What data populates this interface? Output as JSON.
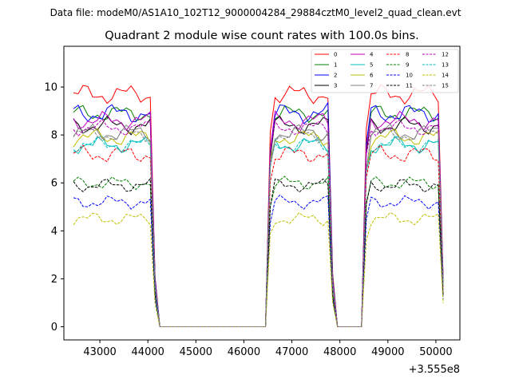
{
  "chart_data": {
    "type": "line",
    "suptitle": "Data file: modeM0/AS1A10_102T12_9000004284_29884cztM0_level2_quad_clean.evt",
    "title": "Quadrant 2 module wise count rates with 100.0s bins.",
    "xlabel": "",
    "ylabel": "",
    "x_offset_label": "+3.555e8",
    "xlim": [
      42250,
      50500
    ],
    "ylim": [
      -0.55,
      11.7
    ],
    "x_ticks": [
      43000,
      44000,
      45000,
      46000,
      47000,
      48000,
      49000,
      50000
    ],
    "x_tick_labels": [
      "43000",
      "44000",
      "45000",
      "46000",
      "47000",
      "48000",
      "49000",
      "50000"
    ],
    "y_ticks": [
      0,
      2,
      4,
      6,
      8,
      10
    ],
    "y_tick_labels": [
      "0",
      "2",
      "4",
      "6",
      "8",
      "10"
    ],
    "legend_position": "top-right",
    "segments": [
      {
        "start": 42450,
        "end": 44150
      },
      {
        "start": 46550,
        "end": 47850
      },
      {
        "start": 48550,
        "end": 50150
      }
    ],
    "series": [
      {
        "name": "0",
        "level": 9.7,
        "amp": 0.45,
        "color": "#ff0000",
        "dash": "solid",
        "phase": 0.3
      },
      {
        "name": "1",
        "level": 8.9,
        "amp": 0.4,
        "color": "#008000",
        "dash": "solid",
        "phase": 1.1
      },
      {
        "name": "2",
        "level": 8.9,
        "amp": 0.45,
        "color": "#0000ff",
        "dash": "solid",
        "phase": 2.0
      },
      {
        "name": "3",
        "level": 8.4,
        "amp": 0.4,
        "color": "#000000",
        "dash": "solid",
        "phase": 2.7
      },
      {
        "name": "4",
        "level": 8.6,
        "amp": 0.4,
        "color": "#bf00bf",
        "dash": "solid",
        "phase": 3.5
      },
      {
        "name": "5",
        "level": 7.6,
        "amp": 0.4,
        "color": "#00bfbf",
        "dash": "solid",
        "phase": 4.2
      },
      {
        "name": "6",
        "level": 7.9,
        "amp": 0.4,
        "color": "#bfbf00",
        "dash": "solid",
        "phase": 5.0
      },
      {
        "name": "7",
        "level": 8.1,
        "amp": 0.4,
        "color": "#808080",
        "dash": "solid",
        "phase": 5.8
      },
      {
        "name": "8",
        "level": 7.2,
        "amp": 0.4,
        "color": "#ff0000",
        "dash": "dashed",
        "phase": 0.8
      },
      {
        "name": "9",
        "level": 6.0,
        "amp": 0.3,
        "color": "#008000",
        "dash": "dashed",
        "phase": 1.6
      },
      {
        "name": "10",
        "level": 5.2,
        "amp": 0.3,
        "color": "#0000ff",
        "dash": "dashed",
        "phase": 2.4
      },
      {
        "name": "11",
        "level": 5.9,
        "amp": 0.3,
        "color": "#000000",
        "dash": "dashed",
        "phase": 3.1
      },
      {
        "name": "12",
        "level": 8.3,
        "amp": 0.35,
        "color": "#bf00bf",
        "dash": "dashed",
        "phase": 3.9
      },
      {
        "name": "13",
        "level": 7.6,
        "amp": 0.35,
        "color": "#00bfbf",
        "dash": "dashed",
        "phase": 4.6
      },
      {
        "name": "14",
        "level": 4.5,
        "amp": 0.3,
        "color": "#bfbf00",
        "dash": "dashed",
        "phase": 5.4
      },
      {
        "name": "15",
        "level": 8.0,
        "amp": 0.35,
        "color": "#808080",
        "dash": "dashed",
        "phase": 6.1
      }
    ]
  }
}
